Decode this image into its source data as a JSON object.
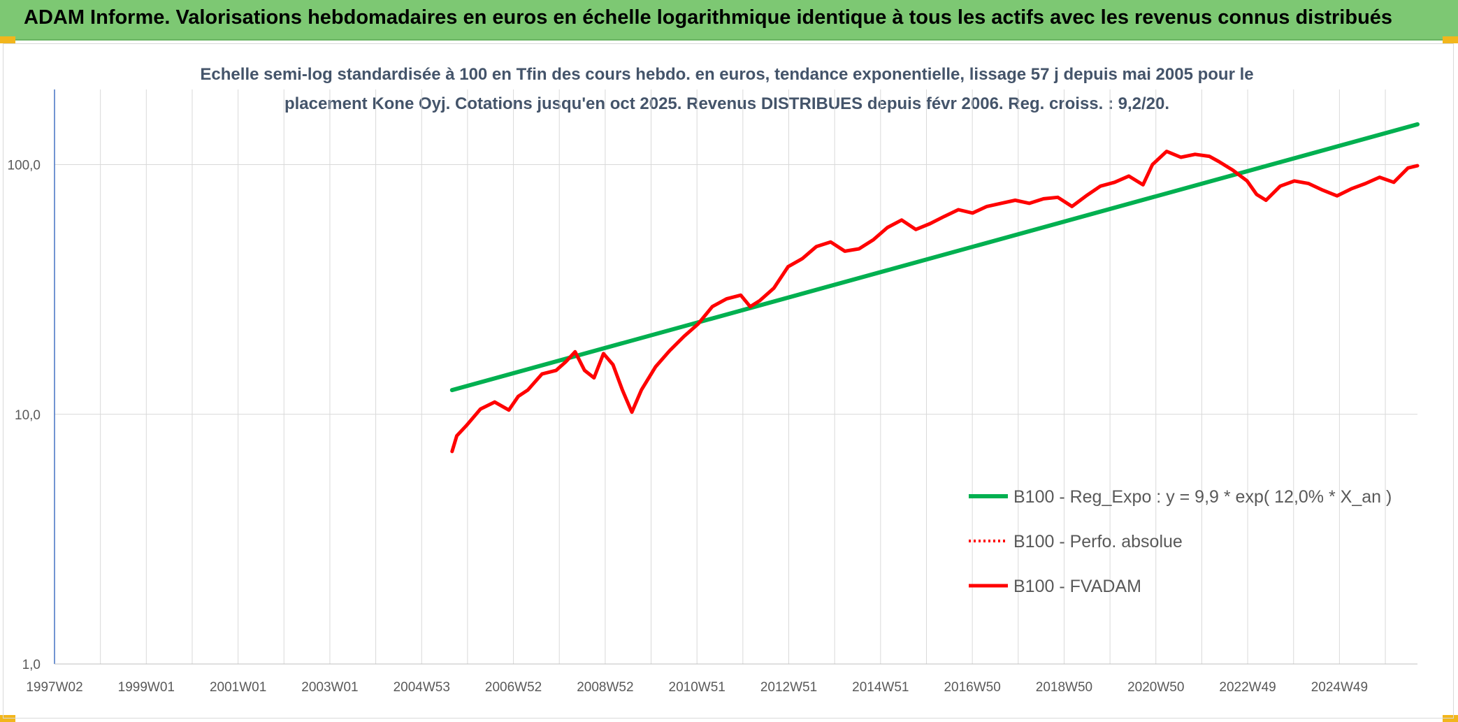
{
  "header": {
    "title": "ADAM Informe. Valorisations hebdomadaires en euros en échelle logarithmique identique à tous les actifs avec les revenus connus distribués"
  },
  "colors": {
    "banner": "#7dc873",
    "corner": "#f2b61c",
    "regression": "#00b050",
    "fvadam": "#ff0000",
    "grid": "#d9d9d9",
    "y_axis": "#4472c4"
  },
  "chart_data": {
    "type": "line",
    "title_line1": "Echelle semi-log standardisée à 100 en Tfin des cours hebdo. en euros, tendance exponentielle, lissage 57 j depuis mai 2005 pour le",
    "title_line2": "placement Kone Oyj. Cotations jusqu'en oct 2025. Revenus DISTRIBUES depuis févr 2006. Reg. croiss. : 9,2/20.",
    "y_scale": "log",
    "ylim": [
      1,
      100
    ],
    "y_ticks": [
      "1,0",
      "10,0",
      "100,0"
    ],
    "x_range": [
      1997.0,
      2025.8
    ],
    "x_ticks": [
      "1997W02",
      "1999W01",
      "2001W01",
      "2003W01",
      "2004W53",
      "2006W52",
      "2008W52",
      "2010W51",
      "2012W51",
      "2014W51",
      "2016W50",
      "2018W50",
      "2020W50",
      "2022W49",
      "2024W49"
    ],
    "grid": "vertical and horizontal",
    "legend_position": "bottom-right",
    "legend": [
      "B100 - Reg_Expo : y = 9,9 * exp( 12,0% *  X_an )",
      "B100 - Perfo. absolue",
      "B100 - FVADAM"
    ],
    "series": [
      {
        "name": "B100 - Reg_Expo : y = 9,9 * exp( 12,0% *  X_an )",
        "style": "solid-green",
        "x": [
          2005.4,
          2025.8
        ],
        "y": [
          12.5,
          145
        ]
      },
      {
        "name": "B100 - FVADAM",
        "style": "solid-red",
        "x": [
          2005.4,
          2005.5,
          2005.7,
          2006.0,
          2006.3,
          2006.6,
          2006.8,
          2007.0,
          2007.3,
          2007.6,
          2007.8,
          2008.0,
          2008.2,
          2008.4,
          2008.6,
          2008.8,
          2009.0,
          2009.2,
          2009.4,
          2009.7,
          2010.0,
          2010.3,
          2010.6,
          2010.9,
          2011.2,
          2011.5,
          2011.7,
          2011.9,
          2012.2,
          2012.5,
          2012.8,
          2013.1,
          2013.4,
          2013.7,
          2014.0,
          2014.3,
          2014.6,
          2014.9,
          2015.2,
          2015.5,
          2015.8,
          2016.1,
          2016.4,
          2016.7,
          2017.0,
          2017.3,
          2017.6,
          2017.9,
          2018.2,
          2018.5,
          2018.8,
          2019.1,
          2019.4,
          2019.7,
          2020.0,
          2020.2,
          2020.5,
          2020.8,
          2021.1,
          2021.4,
          2021.6,
          2021.9,
          2022.2,
          2022.4,
          2022.6,
          2022.9,
          2023.2,
          2023.5,
          2023.8,
          2024.1,
          2024.4,
          2024.7,
          2025.0,
          2025.3,
          2025.6,
          2025.8
        ],
        "y": [
          7.1,
          8.2,
          9.0,
          10.5,
          11.2,
          10.4,
          11.8,
          12.5,
          14.5,
          15.0,
          16.2,
          17.8,
          15.0,
          14.0,
          17.5,
          15.8,
          12.5,
          10.2,
          12.5,
          15.5,
          18.0,
          20.5,
          23.0,
          27.0,
          29.0,
          30.0,
          27.0,
          28.5,
          32.0,
          39.0,
          42.0,
          47.0,
          49.0,
          45.0,
          46.0,
          50.0,
          56.0,
          60.0,
          55.0,
          58.0,
          62.0,
          66.0,
          64.0,
          68.0,
          70.0,
          72.0,
          70.0,
          73.0,
          74.0,
          68.0,
          75.0,
          82.0,
          85.0,
          90.0,
          83.0,
          100.0,
          113.0,
          107.0,
          110.0,
          108.0,
          103.0,
          95.0,
          86.0,
          76.0,
          72.0,
          82.0,
          86.0,
          84.0,
          79.0,
          75.0,
          80.0,
          84.0,
          89.0,
          85.0,
          97.0,
          99.0
        ]
      },
      {
        "name": "B100 - Perfo. absolue",
        "style": "dotted-red",
        "x": [],
        "y": []
      }
    ]
  }
}
